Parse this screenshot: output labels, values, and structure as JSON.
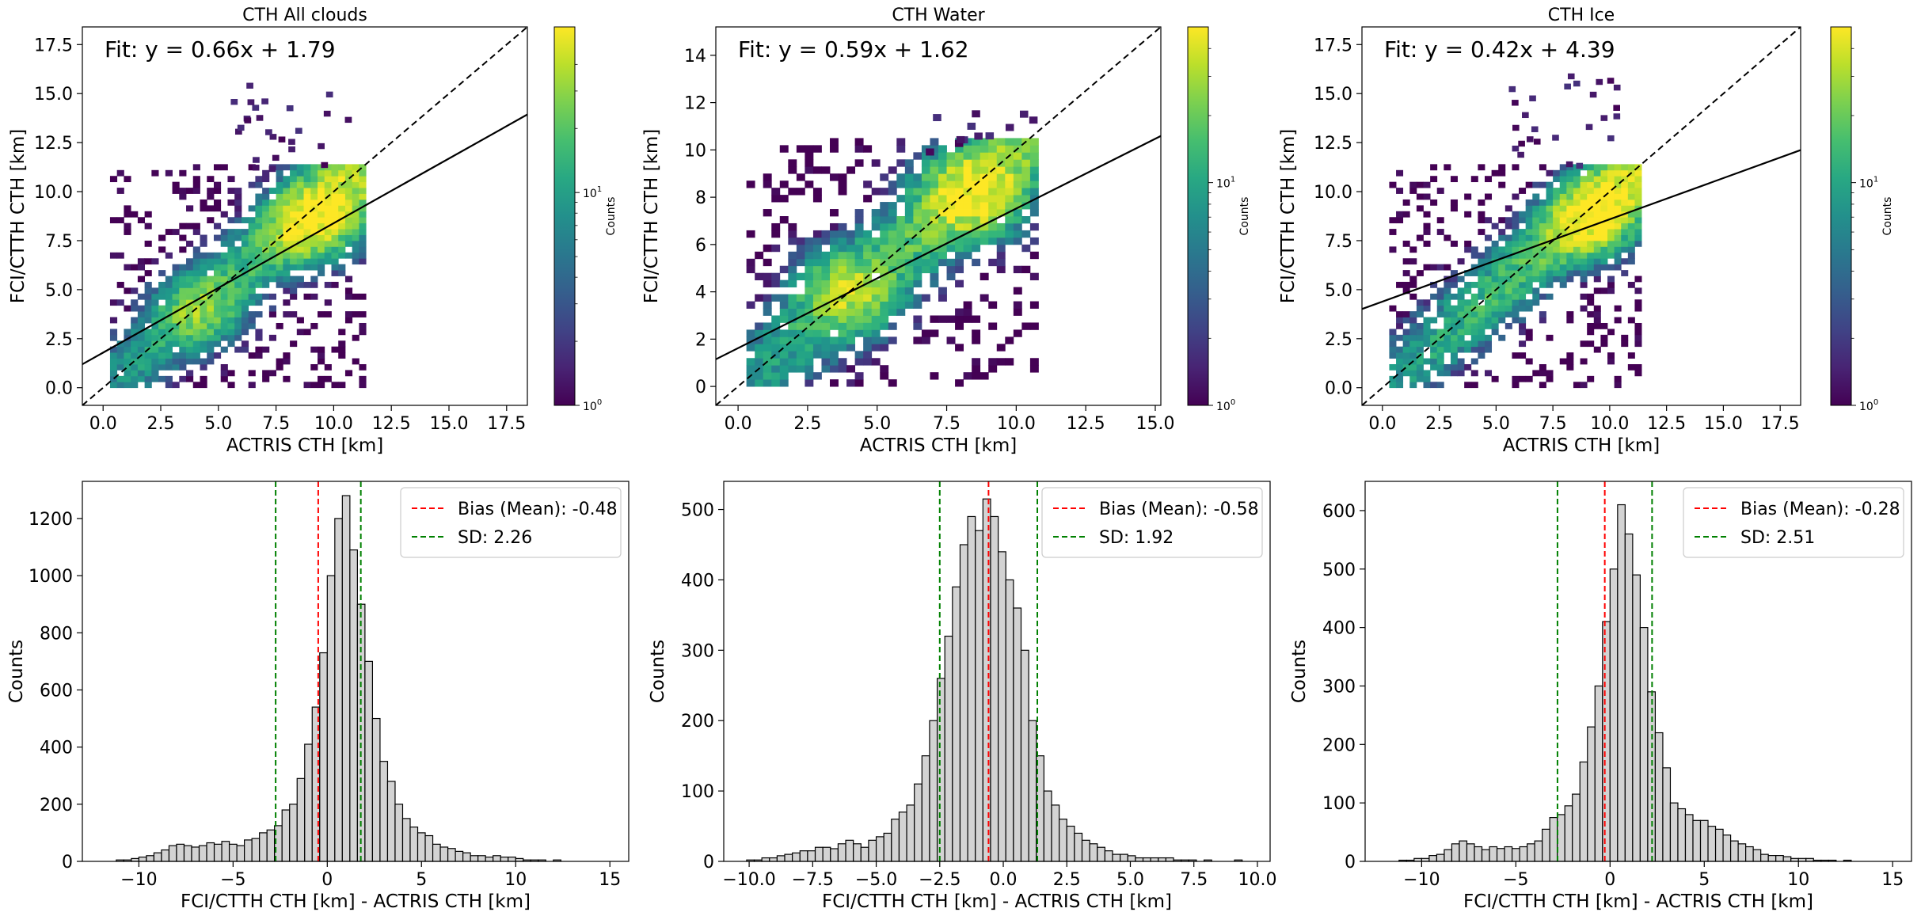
{
  "chart_data": [
    {
      "type": "heatmap",
      "title": "CTH All clouds",
      "xlabel": "ACTRIS CTH [km]",
      "ylabel": "FCI/CTTH CTH [km]",
      "xlim": [
        -0.9,
        18.4
      ],
      "ylim": [
        -0.9,
        18.4
      ],
      "xticks": [
        0.0,
        2.5,
        5.0,
        7.5,
        10.0,
        12.5,
        15.0,
        17.5
      ],
      "yticks": [
        0.0,
        2.5,
        5.0,
        7.5,
        10.0,
        12.5,
        15.0,
        17.5
      ],
      "x_tick_labels": [
        "0.0",
        "2.5",
        "5.0",
        "7.5",
        "10.0",
        "12.5",
        "15.0",
        "17.5"
      ],
      "y_tick_labels": [
        "0.0",
        "2.5",
        "5.0",
        "7.5",
        "10.0",
        "12.5",
        "15.0",
        "17.5"
      ],
      "annotation": "Fit: y = 0.66x + 1.79",
      "fit": {
        "slope": 0.66,
        "intercept": 1.79
      },
      "one_to_one_line": true,
      "colorbar": {
        "label": "Counts",
        "scale": "log",
        "ticks": [
          "10",
          "10"
        ],
        "tick_exponents": [
          "0",
          "1"
        ],
        "tick_values": [
          1,
          10
        ],
        "vmax": 60
      },
      "density_peaks": [
        {
          "x": 8.8,
          "y": 8.2,
          "count": 55
        },
        {
          "x": 4.0,
          "y": 3.8,
          "count": 22
        },
        {
          "x": 10.0,
          "y": 9.5,
          "count": 30
        }
      ]
    },
    {
      "type": "heatmap",
      "title": "CTH Water",
      "xlabel": "ACTRIS CTH [km]",
      "ylabel": "FCI/CTTH CTH [km]",
      "xlim": [
        -0.8,
        15.2
      ],
      "ylim": [
        -0.8,
        15.2
      ],
      "xticks": [
        0.0,
        2.5,
        5.0,
        7.5,
        10.0,
        12.5,
        15.0
      ],
      "yticks": [
        0,
        2,
        4,
        6,
        8,
        10,
        12,
        14
      ],
      "x_tick_labels": [
        "0.0",
        "2.5",
        "5.0",
        "7.5",
        "10.0",
        "12.5",
        "15.0"
      ],
      "y_tick_labels": [
        "0",
        "2",
        "4",
        "6",
        "8",
        "10",
        "12",
        "14"
      ],
      "annotation": "Fit: y = 0.59x + 1.62",
      "fit": {
        "slope": 0.59,
        "intercept": 1.62
      },
      "one_to_one_line": true,
      "colorbar": {
        "label": "Counts",
        "scale": "log",
        "ticks": [
          "10",
          "10"
        ],
        "tick_exponents": [
          "0",
          "1"
        ],
        "tick_values": [
          1,
          10
        ],
        "vmax": 50
      },
      "density_peaks": [
        {
          "x": 8.3,
          "y": 8.0,
          "count": 45
        },
        {
          "x": 3.8,
          "y": 3.8,
          "count": 25
        }
      ]
    },
    {
      "type": "heatmap",
      "title": "CTH Ice",
      "xlabel": "ACTRIS CTH [km]",
      "ylabel": "FCI/CTTH CTH [km]",
      "xlim": [
        -0.9,
        18.4
      ],
      "ylim": [
        -0.9,
        18.4
      ],
      "xticks": [
        0.0,
        2.5,
        5.0,
        7.5,
        10.0,
        12.5,
        15.0,
        17.5
      ],
      "yticks": [
        0.0,
        2.5,
        5.0,
        7.5,
        10.0,
        12.5,
        15.0,
        17.5
      ],
      "x_tick_labels": [
        "0.0",
        "2.5",
        "5.0",
        "7.5",
        "10.0",
        "12.5",
        "15.0",
        "17.5"
      ],
      "y_tick_labels": [
        "0.0",
        "2.5",
        "5.0",
        "7.5",
        "10.0",
        "12.5",
        "15.0",
        "17.5"
      ],
      "annotation": "Fit: y = 0.42x + 4.39",
      "fit": {
        "slope": 0.42,
        "intercept": 4.39
      },
      "one_to_one_line": true,
      "colorbar": {
        "label": "Counts",
        "scale": "log",
        "ticks": [
          "10",
          "10"
        ],
        "tick_exponents": [
          "0",
          "1"
        ],
        "tick_values": [
          1,
          10
        ],
        "vmax": 50
      },
      "density_peaks": [
        {
          "x": 8.9,
          "y": 8.3,
          "count": 45
        },
        {
          "x": 10.2,
          "y": 9.6,
          "count": 25
        }
      ]
    },
    {
      "type": "bar",
      "subtype": "histogram",
      "xlabel": "FCI/CTTH CTH [km] - ACTRIS CTH [km]",
      "ylabel": "Counts",
      "xlim": [
        -13.0,
        16.0
      ],
      "ylim": [
        0,
        1330
      ],
      "xticks": [
        -10,
        -5,
        0,
        5,
        10,
        15
      ],
      "yticks": [
        0,
        200,
        400,
        600,
        800,
        1000,
        1200
      ],
      "x_tick_labels": [
        "−10",
        "−5",
        "0",
        "5",
        "10",
        "15"
      ],
      "y_tick_labels": [
        "0",
        "200",
        "400",
        "600",
        "800",
        "1000",
        "1200"
      ],
      "bin_width": 0.4,
      "bin_start": -11.2,
      "counts": [
        5,
        5,
        10,
        15,
        20,
        30,
        40,
        55,
        60,
        55,
        50,
        55,
        65,
        60,
        70,
        60,
        55,
        75,
        80,
        100,
        110,
        125,
        180,
        200,
        290,
        410,
        540,
        730,
        1000,
        1200,
        1280,
        1090,
        900,
        700,
        500,
        350,
        280,
        200,
        150,
        120,
        100,
        90,
        60,
        50,
        45,
        35,
        30,
        20,
        20,
        15,
        20,
        15,
        15,
        10,
        5,
        5,
        5,
        0,
        5,
        0,
        0,
        0,
        0,
        0,
        0,
        0,
        0,
        0,
        0,
        0,
        0,
        0,
        0,
        0,
        0,
        0,
        5
      ],
      "bias_mean": -0.48,
      "sd": 2.26,
      "legend": [
        "Bias (Mean): -0.48",
        "SD: 2.26"
      ],
      "legend_position": "top-right"
    },
    {
      "type": "bar",
      "subtype": "histogram",
      "xlabel": "FCI/CTTH CTH [km] - ACTRIS CTH [km]",
      "ylabel": "Counts",
      "xlim": [
        -11.0,
        10.5
      ],
      "ylim": [
        0,
        540
      ],
      "xticks": [
        -10.0,
        -7.5,
        -5.0,
        -2.5,
        0.0,
        2.5,
        5.0,
        7.5,
        10.0
      ],
      "yticks": [
        0,
        100,
        200,
        300,
        400,
        500
      ],
      "x_tick_labels": [
        "−10.0",
        "−7.5",
        "−5.0",
        "−2.5",
        "0.0",
        "2.5",
        "5.0",
        "7.5",
        "10.0"
      ],
      "y_tick_labels": [
        "0",
        "100",
        "200",
        "300",
        "400",
        "500"
      ],
      "bin_width": 0.3,
      "bin_start": -10.1,
      "counts": [
        2,
        2,
        5,
        5,
        8,
        10,
        12,
        15,
        15,
        20,
        20,
        18,
        25,
        30,
        25,
        20,
        30,
        35,
        40,
        60,
        70,
        80,
        110,
        150,
        200,
        260,
        320,
        390,
        450,
        490,
        470,
        515,
        490,
        440,
        400,
        360,
        300,
        200,
        150,
        100,
        80,
        60,
        50,
        40,
        30,
        25,
        20,
        15,
        10,
        10,
        8,
        5,
        5,
        5,
        5,
        5,
        2,
        2,
        2,
        0,
        2,
        0,
        0,
        0,
        2,
        0,
        0,
        0
      ],
      "bias_mean": -0.58,
      "sd": 1.92,
      "legend": [
        "Bias (Mean): -0.58",
        "SD: 1.92"
      ],
      "legend_position": "top-right"
    },
    {
      "type": "bar",
      "subtype": "histogram",
      "xlabel": "FCI/CTTH CTH [km] - ACTRIS CTH [km]",
      "ylabel": "Counts",
      "xlim": [
        -13.0,
        16.0
      ],
      "ylim": [
        0,
        650
      ],
      "xticks": [
        -10,
        -5,
        0,
        5,
        10,
        15
      ],
      "yticks": [
        0,
        100,
        200,
        300,
        400,
        500,
        600
      ],
      "x_tick_labels": [
        "−10",
        "−5",
        "0",
        "5",
        "10",
        "15"
      ],
      "y_tick_labels": [
        "0",
        "100",
        "200",
        "300",
        "400",
        "500",
        "600"
      ],
      "bin_width": 0.4,
      "bin_start": -11.2,
      "counts": [
        2,
        2,
        5,
        5,
        10,
        12,
        20,
        30,
        35,
        30,
        25,
        20,
        25,
        22,
        25,
        22,
        25,
        30,
        35,
        55,
        75,
        80,
        95,
        115,
        170,
        230,
        300,
        410,
        500,
        610,
        560,
        490,
        400,
        290,
        220,
        160,
        100,
        90,
        80,
        70,
        70,
        60,
        55,
        45,
        35,
        30,
        25,
        20,
        12,
        10,
        10,
        8,
        5,
        5,
        5,
        2,
        2,
        2,
        0,
        2,
        0,
        0,
        0,
        0,
        0,
        0,
        0,
        0,
        0,
        0,
        0,
        0,
        0,
        0,
        2
      ],
      "bias_mean": -0.28,
      "sd": 2.51,
      "legend": [
        "Bias (Mean): -0.28",
        "SD: 2.51"
      ],
      "legend_position": "top-right"
    }
  ]
}
